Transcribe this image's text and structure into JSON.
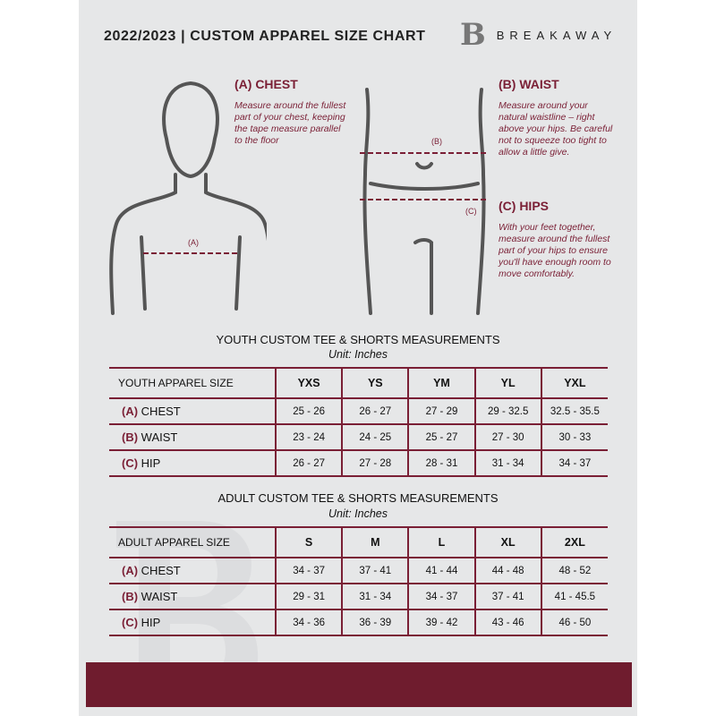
{
  "header": {
    "title": "2022/2023  |  CUSTOM APPAREL SIZE CHART",
    "brand": "BREAKAWAY",
    "brand_logo_letter": "B"
  },
  "guide": {
    "chest": {
      "heading": "(A) CHEST",
      "text": "Measure around the fullest part of your chest, keeping the tape measure parallel to the floor",
      "marker": "(A)"
    },
    "waist": {
      "heading": "(B) WAIST",
      "text": "Measure around your natural waistline – right above your hips. Be careful not to squeeze too tight to allow a little give.",
      "marker": "(B)"
    },
    "hips": {
      "heading": "(C) HIPS",
      "text": "With your feet together, measure around the fullest part of your hips to ensure you'll have enough room to move comfortably.",
      "marker": "(C)"
    }
  },
  "youth": {
    "title": "YOUTH CUSTOM TEE & SHORTS MEASUREMENTS",
    "unit": "Unit: Inches",
    "size_label": "YOUTH APPAREL SIZE",
    "sizes": [
      "YXS",
      "YS",
      "YM",
      "YL",
      "YXL"
    ],
    "rows": [
      {
        "letter": "(A)",
        "name": "CHEST",
        "values": [
          "25 - 26",
          "26 - 27",
          "27 - 29",
          "29 - 32.5",
          "32.5 - 35.5"
        ]
      },
      {
        "letter": "(B)",
        "name": "WAIST",
        "values": [
          "23 - 24",
          "24 - 25",
          "25 - 27",
          "27 - 30",
          "30 - 33"
        ]
      },
      {
        "letter": "(C)",
        "name": "HIP",
        "values": [
          "26 - 27",
          "27 - 28",
          "28 - 31",
          "31 - 34",
          "34 - 37"
        ]
      }
    ]
  },
  "adult": {
    "title": "ADULT CUSTOM TEE & SHORTS MEASUREMENTS",
    "unit": "Unit: Inches",
    "size_label": "ADULT APPAREL SIZE",
    "sizes": [
      "S",
      "M",
      "L",
      "XL",
      "2XL"
    ],
    "rows": [
      {
        "letter": "(A)",
        "name": "CHEST",
        "values": [
          "34 - 37",
          "37 - 41",
          "41 - 44",
          "44 - 48",
          "48 - 52"
        ]
      },
      {
        "letter": "(B)",
        "name": "WAIST",
        "values": [
          "29 - 31",
          "31 - 34",
          "34 - 37",
          "37 - 41",
          "41 - 45.5"
        ]
      },
      {
        "letter": "(C)",
        "name": "HIP",
        "values": [
          "34 - 36",
          "36 - 39",
          "39 - 42",
          "43 - 46",
          "46 - 50"
        ]
      }
    ]
  },
  "colors": {
    "accent": "#7a1f35",
    "background": "#e6e7e8",
    "footer_bar": "#6f1c2e"
  }
}
